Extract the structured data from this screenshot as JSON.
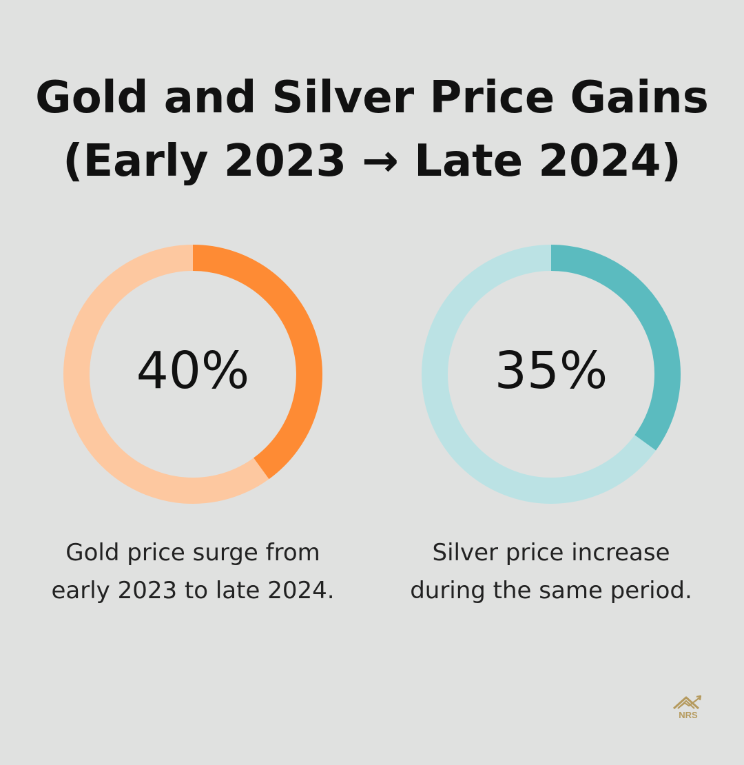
{
  "title": {
    "line1": "Gold and Silver Price Gains",
    "line2": "(Early 2023 → Late 2024)"
  },
  "colors": {
    "gold_fill": "#fe8b34",
    "gold_track": "#fdc8a0",
    "silver_fill": "#5bbbbf",
    "silver_track": "#bbe2e4",
    "background": "#e0e1e0"
  },
  "chart_data": [
    {
      "type": "pie",
      "label": "40%",
      "value": 40,
      "max": 100,
      "description_line1": "Gold price surge from",
      "description_line2": "early 2023 to late 2024."
    },
    {
      "type": "pie",
      "label": "35%",
      "value": 35,
      "max": 100,
      "description_line1": "Silver price increase",
      "description_line2": "during the same period."
    }
  ],
  "logo": {
    "text": "NRS",
    "icon": "house-chart-icon"
  }
}
